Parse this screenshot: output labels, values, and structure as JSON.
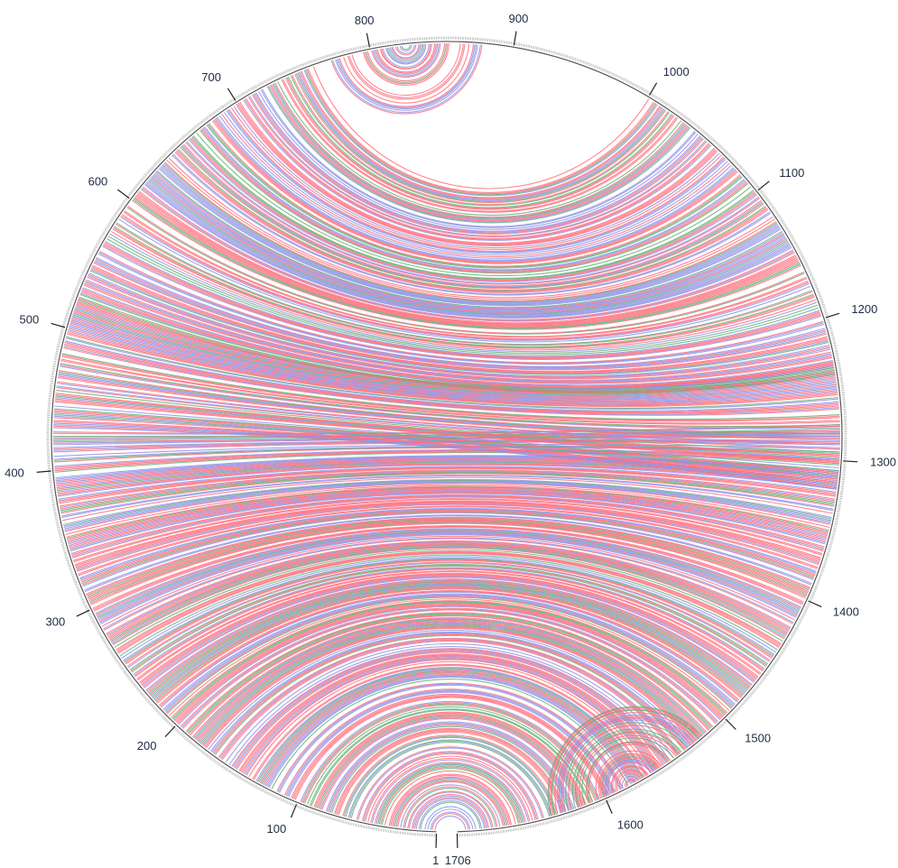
{
  "diagram": {
    "type": "circular-arc",
    "sequence_length": 1706,
    "labels": [
      {
        "position": 1,
        "text": "1"
      },
      {
        "position": 100,
        "text": "100"
      },
      {
        "position": 200,
        "text": "200"
      },
      {
        "position": 300,
        "text": "300"
      },
      {
        "position": 400,
        "text": "400"
      },
      {
        "position": 500,
        "text": "500"
      },
      {
        "position": 600,
        "text": "600"
      },
      {
        "position": 700,
        "text": "700"
      },
      {
        "position": 800,
        "text": "800"
      },
      {
        "position": 900,
        "text": "900"
      },
      {
        "position": 1000,
        "text": "1000"
      },
      {
        "position": 1100,
        "text": "1100"
      },
      {
        "position": 1200,
        "text": "1200"
      },
      {
        "position": 1300,
        "text": "1300"
      },
      {
        "position": 1400,
        "text": "1400"
      },
      {
        "position": 1500,
        "text": "1500"
      },
      {
        "position": 1600,
        "text": "1600"
      },
      {
        "position": 1706,
        "text": "1706"
      }
    ],
    "colors": {
      "red": "#ff6f7d",
      "blue": "#8f93e6",
      "green": "#66b07a",
      "outline": "#555555",
      "label": "#1f2a44"
    }
  }
}
